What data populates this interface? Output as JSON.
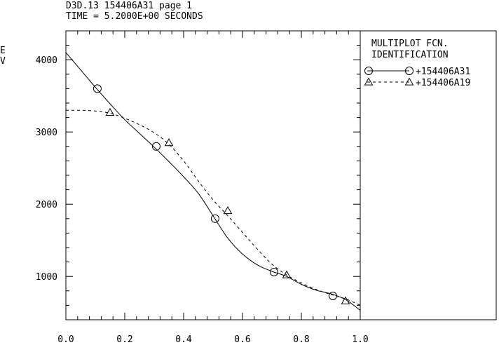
{
  "header": {
    "line1": "D3D.13 154406A31 page 1",
    "line2": "TIME = 5.2000E+00 SECONDS"
  },
  "legend": {
    "title_line1": "MULTIPLOT FCN.",
    "title_line2": "IDENTIFICATION"
  },
  "chart_data": {
    "type": "line",
    "title": "",
    "xlabel": "",
    "ylabel": "E\nV",
    "ylabel_chars": [
      "E",
      "V"
    ],
    "xlim": [
      0.0,
      1.0
    ],
    "ylim": [
      400,
      4400
    ],
    "x_ticks": [
      "0.0",
      "0.2",
      "0.4",
      "0.6",
      "0.8",
      "1.0"
    ],
    "y_ticks": [
      "1000",
      "2000",
      "3000",
      "4000"
    ],
    "grid": false,
    "legend_position": "right-panel",
    "series": [
      {
        "name": "+154406A31",
        "line_style": "solid",
        "marker": "circle",
        "x": [
          0.0,
          0.05,
          0.1,
          0.15,
          0.2,
          0.25,
          0.3,
          0.35,
          0.4,
          0.45,
          0.5,
          0.55,
          0.6,
          0.65,
          0.7,
          0.75,
          0.8,
          0.85,
          0.9,
          0.95,
          1.0
        ],
        "y": [
          4100,
          3860,
          3620,
          3390,
          3170,
          2980,
          2790,
          2590,
          2380,
          2150,
          1840,
          1530,
          1310,
          1160,
          1070,
          1000,
          890,
          810,
          760,
          680,
          530
        ],
        "marker_points": {
          "x": [
            0.107,
            0.307,
            0.507,
            0.707,
            0.907
          ],
          "y": [
            3600,
            2800,
            1800,
            1060,
            730
          ]
        }
      },
      {
        "name": "+154406A19",
        "line_style": "dashed",
        "marker": "triangle",
        "x": [
          0.0,
          0.05,
          0.1,
          0.15,
          0.2,
          0.25,
          0.3,
          0.35,
          0.4,
          0.45,
          0.5,
          0.55,
          0.6,
          0.65,
          0.7,
          0.75,
          0.8,
          0.85,
          0.9,
          0.95,
          1.0
        ],
        "y": [
          3300,
          3300,
          3290,
          3260,
          3190,
          3100,
          2990,
          2830,
          2600,
          2320,
          2060,
          1840,
          1610,
          1380,
          1170,
          1020,
          910,
          820,
          750,
          690,
          600
        ],
        "marker_points": {
          "x": [
            0.15,
            0.35,
            0.55,
            0.75,
            0.95
          ],
          "y": [
            3270,
            2850,
            1910,
            1020,
            660
          ]
        }
      }
    ]
  }
}
